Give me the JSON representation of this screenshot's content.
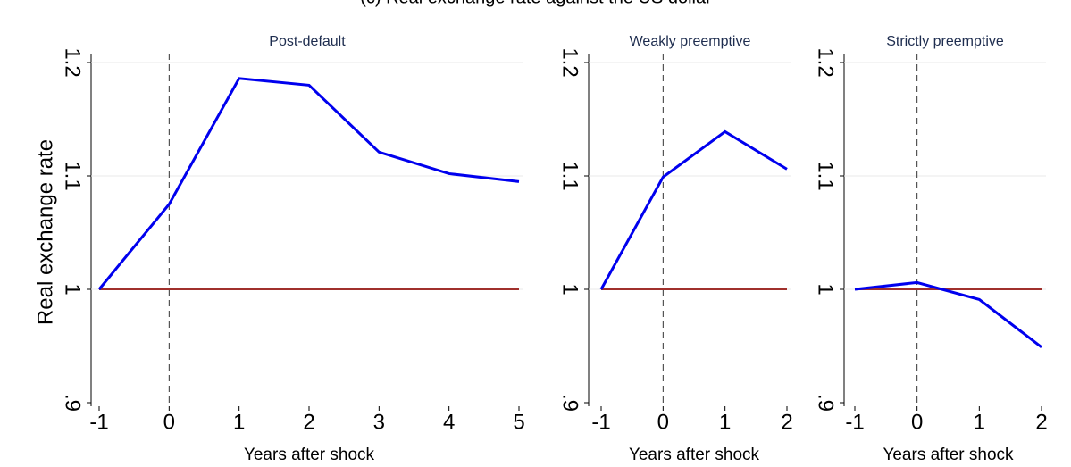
{
  "title": "(c) Real exchange rate against the US dollar",
  "chart_data": [
    {
      "type": "line",
      "title": "Post-default",
      "xlabel": "Years after shock",
      "ylabel": "Real exchange rate",
      "x": [
        -1,
        0,
        1,
        2,
        3,
        4,
        5
      ],
      "series": [
        {
          "color": "#0000ee",
          "values": [
            1.0,
            1.075,
            1.186,
            1.18,
            1.121,
            1.102,
            1.095
          ]
        },
        {
          "color": "#a0302c",
          "values": [
            1,
            1,
            1,
            1,
            1,
            1,
            1
          ]
        }
      ],
      "xlim": [
        -1,
        5
      ],
      "xticks": [
        -1,
        0,
        1,
        2,
        3,
        4,
        5
      ],
      "ylim": [
        0.9,
        1.2
      ],
      "yticks": [
        {
          "value": 0.9,
          "label": ".9"
        },
        1,
        1.1,
        1.2
      ],
      "grid": true
    },
    {
      "type": "line",
      "title": "Weakly preemptive",
      "xlabel": "Years after shock",
      "x": [
        -1,
        0,
        1,
        2
      ],
      "series": [
        {
          "color": "#0000ee",
          "values": [
            1.0,
            1.099,
            1.139,
            1.106
          ]
        },
        {
          "color": "#a0302c",
          "values": [
            1,
            1,
            1,
            1
          ]
        }
      ],
      "xlim": [
        -1,
        2
      ],
      "xticks": [
        -1,
        0,
        1,
        2
      ],
      "ylim": [
        0.9,
        1.2
      ],
      "yticks": [
        {
          "value": 0.9,
          "label": ".9"
        },
        1,
        1.1,
        1.2
      ],
      "grid": true
    },
    {
      "type": "line",
      "title": "Strictly preemptive",
      "xlabel": "Years after shock",
      "x": [
        -1,
        0,
        1,
        2
      ],
      "series": [
        {
          "color": "#0000ee",
          "values": [
            1.0,
            1.006,
            0.991,
            0.949
          ]
        },
        {
          "color": "#a0302c",
          "values": [
            1,
            1,
            1,
            1
          ]
        }
      ],
      "xlim": [
        -1,
        2
      ],
      "xticks": [
        -1,
        0,
        1,
        2
      ],
      "ylim": [
        0.9,
        1.2
      ],
      "yticks": [
        {
          "value": 0.9,
          "label": ".9"
        },
        1,
        1.1,
        1.2
      ],
      "grid": true
    }
  ]
}
